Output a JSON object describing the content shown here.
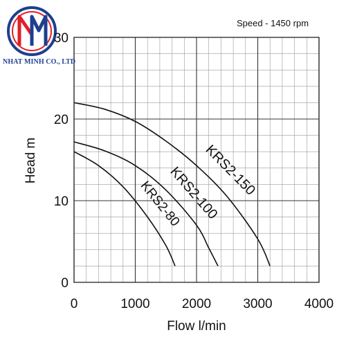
{
  "logo": {
    "text": "NHAT MINH CO., LTD",
    "primary_color": "#1d3f8f",
    "accent_color": "#e21f26"
  },
  "chart_data": {
    "type": "line",
    "annotation": "Speed - 1450 rpm",
    "xlabel": "Flow l/min",
    "ylabel": "Head m",
    "xlim": [
      0,
      4000
    ],
    "ylim": [
      0,
      30
    ],
    "x_ticks": [
      0,
      1000,
      2000,
      3000,
      4000
    ],
    "y_ticks": [
      0,
      10,
      20,
      30
    ],
    "grid": true,
    "minor_x_step": 200,
    "minor_y_step": 2,
    "legend": "none",
    "series": [
      {
        "name": "KRS2-150",
        "x": [
          0,
          500,
          1000,
          1500,
          2000,
          2500,
          3000,
          3200
        ],
        "y": [
          22,
          21.2,
          19.7,
          17.3,
          14.3,
          10.5,
          5.3,
          2
        ]
      },
      {
        "name": "KRS2-100",
        "x": [
          0,
          500,
          1000,
          1500,
          2000,
          2200,
          2350
        ],
        "y": [
          17.2,
          16.1,
          14.3,
          11.3,
          7.0,
          4.2,
          2
        ]
      },
      {
        "name": "KRS2-80",
        "x": [
          0,
          400,
          800,
          1200,
          1500,
          1650
        ],
        "y": [
          16,
          14.3,
          11.7,
          8.0,
          4.5,
          2
        ]
      }
    ]
  }
}
